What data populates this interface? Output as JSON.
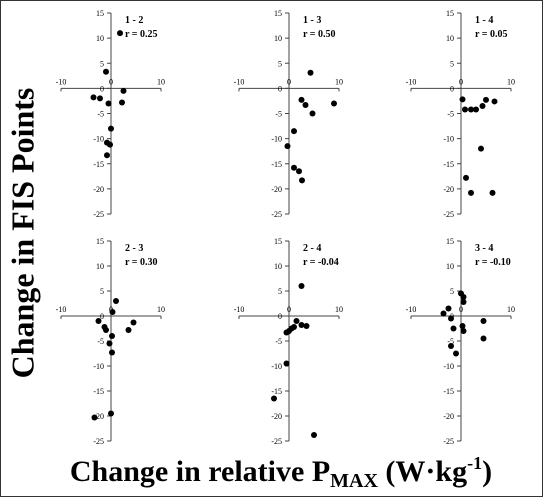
{
  "figure": {
    "y_axis_label": "Change in FIS Points",
    "x_axis_label_main": "Change in relative P",
    "x_axis_label_sub": "MAX",
    "x_axis_label_unit_open": " (W·kg",
    "x_axis_label_sup": "-1",
    "x_axis_label_unit_close": ")"
  },
  "chart_data": [
    {
      "type": "scatter",
      "title": "1 - 2",
      "annotation": "r = 0.25",
      "xlim": [
        -10,
        10
      ],
      "ylim": [
        -25,
        15
      ],
      "xticks": [
        "-10",
        "0",
        "10"
      ],
      "yticks": [
        "15",
        "10",
        "5",
        "0",
        "-5",
        "-10",
        "-15",
        "-20",
        "-25"
      ],
      "points": [
        [
          1.8,
          11
        ],
        [
          -1.0,
          3.3
        ],
        [
          -3.5,
          -1.8
        ],
        [
          -2.2,
          -2.0
        ],
        [
          -0.5,
          -3.0
        ],
        [
          2.2,
          -2.8
        ],
        [
          2.5,
          -0.5
        ],
        [
          0.0,
          -8.0
        ],
        [
          -0.8,
          -10.8
        ],
        [
          -0.2,
          -11.2
        ],
        [
          -0.8,
          -13.3
        ]
      ]
    },
    {
      "type": "scatter",
      "title": "1 - 3",
      "annotation": "r = 0.50",
      "xlim": [
        -10,
        10
      ],
      "ylim": [
        -25,
        15
      ],
      "xticks": [
        "-10",
        "0",
        "10"
      ],
      "yticks": [
        "15",
        "10",
        "5",
        "0",
        "-5",
        "-10",
        "-15",
        "-20",
        "-25"
      ],
      "points": [
        [
          4.3,
          3.1
        ],
        [
          2.5,
          -2.3
        ],
        [
          3.3,
          -3.3
        ],
        [
          4.7,
          -5.0
        ],
        [
          9.0,
          -3.0
        ],
        [
          1.0,
          -8.5
        ],
        [
          -0.3,
          -11.5
        ],
        [
          1.0,
          -15.8
        ],
        [
          2.0,
          -16.5
        ],
        [
          2.6,
          -18.3
        ]
      ]
    },
    {
      "type": "scatter",
      "title": "1 - 4",
      "annotation": "r = 0.05",
      "xlim": [
        -10,
        10
      ],
      "ylim": [
        -25,
        15
      ],
      "xticks": [
        "-10",
        "0",
        "10"
      ],
      "yticks": [
        "15",
        "10",
        "5",
        "0",
        "-5",
        "-10",
        "-15",
        "-20",
        "-25"
      ],
      "points": [
        [
          0.3,
          -2.2
        ],
        [
          5.0,
          -2.3
        ],
        [
          6.7,
          -2.6
        ],
        [
          0.8,
          -4.2
        ],
        [
          2.0,
          -4.2
        ],
        [
          3.0,
          -4.2
        ],
        [
          4.3,
          -3.5
        ],
        [
          4.0,
          -12.0
        ],
        [
          1.0,
          -17.8
        ],
        [
          2.0,
          -20.8
        ],
        [
          6.3,
          -20.8
        ]
      ]
    },
    {
      "type": "scatter",
      "title": "2 - 3",
      "annotation": "r = 0.30",
      "xlim": [
        -10,
        10
      ],
      "ylim": [
        -25,
        15
      ],
      "xticks": [
        "-10",
        "0",
        "10"
      ],
      "yticks": [
        "15",
        "10",
        "5",
        "0",
        "-5",
        "-10",
        "-15",
        "-20",
        "-25"
      ],
      "points": [
        [
          1.0,
          3.0
        ],
        [
          0.3,
          0.8
        ],
        [
          -2.5,
          -1.0
        ],
        [
          4.5,
          -1.3
        ],
        [
          3.5,
          -2.8
        ],
        [
          -1.3,
          -2.2
        ],
        [
          -1.0,
          -2.8
        ],
        [
          0.2,
          -4.0
        ],
        [
          -0.3,
          -5.5
        ],
        [
          0.2,
          -7.3
        ],
        [
          0.0,
          -19.5
        ],
        [
          -3.3,
          -20.3
        ]
      ]
    },
    {
      "type": "scatter",
      "title": "2 - 4",
      "annotation": "r = -0.04",
      "xlim": [
        -10,
        10
      ],
      "ylim": [
        -25,
        15
      ],
      "xticks": [
        "-10",
        "0",
        "10"
      ],
      "yticks": [
        "15",
        "10",
        "5",
        "0",
        "-5",
        "-10",
        "-15",
        "-20",
        "-25"
      ],
      "points": [
        [
          2.5,
          6.0
        ],
        [
          1.5,
          -1.0
        ],
        [
          2.5,
          -1.8
        ],
        [
          3.5,
          -2.0
        ],
        [
          1.0,
          -2.2
        ],
        [
          0.5,
          -2.5
        ],
        [
          0.0,
          -3.0
        ],
        [
          -0.5,
          -3.3
        ],
        [
          -0.5,
          -9.5
        ],
        [
          -3.0,
          -16.5
        ],
        [
          5.0,
          -23.8
        ]
      ]
    },
    {
      "type": "scatter",
      "title": "3 - 4",
      "annotation": "r = -0.10",
      "xlim": [
        -10,
        10
      ],
      "ylim": [
        -25,
        15
      ],
      "xticks": [
        "-10",
        "0",
        "10"
      ],
      "yticks": [
        "15",
        "10",
        "5",
        "0",
        "-5",
        "-10",
        "-15",
        "-20",
        "-25"
      ],
      "points": [
        [
          0.0,
          4.5
        ],
        [
          0.5,
          3.8
        ],
        [
          0.5,
          2.8
        ],
        [
          -2.5,
          1.5
        ],
        [
          -3.5,
          0.5
        ],
        [
          -2.0,
          -0.5
        ],
        [
          4.5,
          -1.0
        ],
        [
          0.3,
          -2.0
        ],
        [
          -1.5,
          -2.5
        ],
        [
          0.5,
          -3.0
        ],
        [
          4.5,
          -4.5
        ],
        [
          -1.0,
          -7.5
        ],
        [
          -2.0,
          -6.0
        ]
      ]
    }
  ]
}
